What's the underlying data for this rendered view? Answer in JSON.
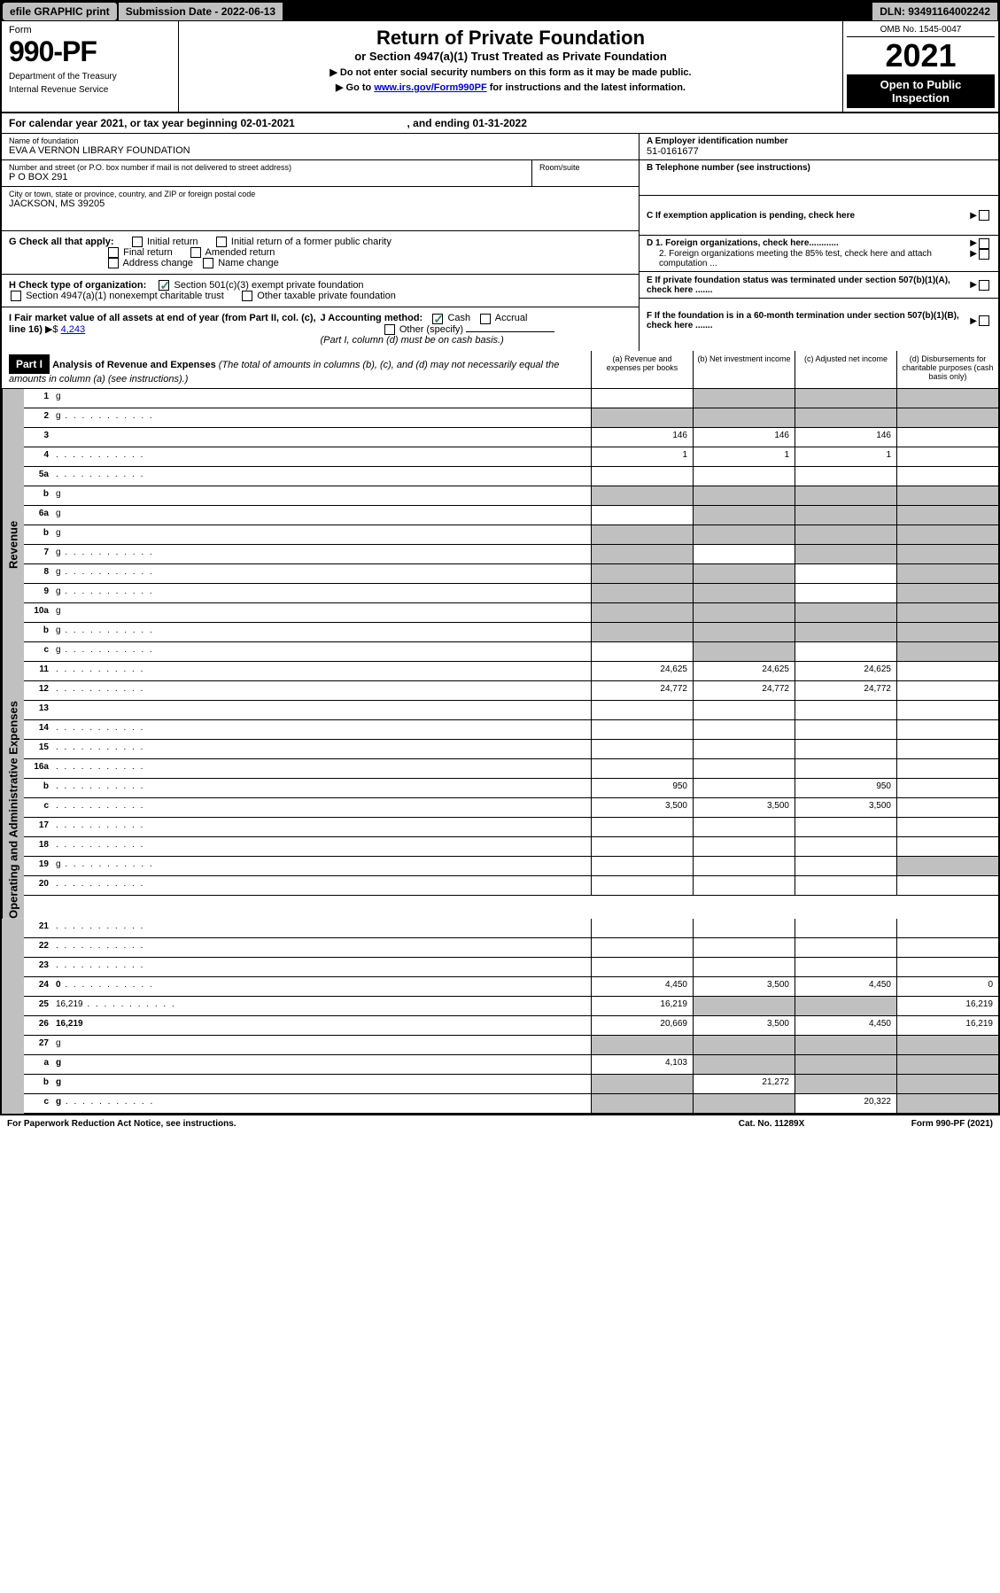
{
  "topbar": {
    "efile": "efile GRAPHIC print",
    "submission": "Submission Date - 2022-06-13",
    "dln": "DLN: 93491164002242"
  },
  "header": {
    "form_label": "Form",
    "form_number": "990-PF",
    "dept1": "Department of the Treasury",
    "dept2": "Internal Revenue Service",
    "title": "Return of Private Foundation",
    "subtitle": "or Section 4947(a)(1) Trust Treated as Private Foundation",
    "note1": "▶ Do not enter social security numbers on this form as it may be made public.",
    "note2_pre": "▶ Go to ",
    "note2_link": "www.irs.gov/Form990PF",
    "note2_post": " for instructions and the latest information.",
    "omb": "OMB No. 1545-0047",
    "year": "2021",
    "open": "Open to Public Inspection"
  },
  "cal": {
    "text": "For calendar year 2021, or tax year beginning 02-01-2021",
    "end": ", and ending 01-31-2022"
  },
  "info": {
    "name_label": "Name of foundation",
    "name_val": "EVA A VERNON LIBRARY FOUNDATION",
    "addr_label": "Number and street (or P.O. box number if mail is not delivered to street address)",
    "addr_val": "P O BOX 291",
    "room_label": "Room/suite",
    "city_label": "City or town, state or province, country, and ZIP or foreign postal code",
    "city_val": "JACKSON, MS  39205",
    "a_label": "A Employer identification number",
    "a_val": "51-0161677",
    "b_label": "B Telephone number (see instructions)",
    "c_label": "C If exemption application is pending, check here",
    "d1": "D 1. Foreign organizations, check here............",
    "d2": "2. Foreign organizations meeting the 85% test, check here and attach computation ...",
    "e": "E  If private foundation status was terminated under section 507(b)(1)(A), check here .......",
    "f": "F  If the foundation is in a 60-month termination under section 507(b)(1)(B), check here .......",
    "g_label": "G Check all that apply:",
    "g_initial": "Initial return",
    "g_initial_former": "Initial return of a former public charity",
    "g_final": "Final return",
    "g_amended": "Amended return",
    "g_address": "Address change",
    "g_name": "Name change",
    "h_label": "H Check type of organization:",
    "h_501c3": "Section 501(c)(3) exempt private foundation",
    "h_4947": "Section 4947(a)(1) nonexempt charitable trust",
    "h_other": "Other taxable private foundation",
    "i_label": "I Fair market value of all assets at end of year (from Part II, col. (c), line 16)",
    "i_val": "4,243",
    "j_label": "J Accounting method:",
    "j_cash": "Cash",
    "j_accrual": "Accrual",
    "j_other": "Other (specify)",
    "j_note": "(Part I, column (d) must be on cash basis.)"
  },
  "part1": {
    "label": "Part I",
    "title": "Analysis of Revenue and Expenses",
    "title_note": "(The total of amounts in columns (b), (c), and (d) may not necessarily equal the amounts in column (a) (see instructions).)",
    "col_a": "(a) Revenue and expenses per books",
    "col_b": "(b) Net investment income",
    "col_c": "(c) Adjusted net income",
    "col_d": "(d) Disbursements for charitable purposes (cash basis only)"
  },
  "side_labels": {
    "revenue": "Revenue",
    "opex": "Operating and Administrative Expenses"
  },
  "rows": [
    {
      "n": "1",
      "d": "g",
      "a": "",
      "b": "g",
      "c": "g"
    },
    {
      "n": "2",
      "d": "g",
      "a": "g",
      "b": "g",
      "c": "g",
      "dots": true
    },
    {
      "n": "3",
      "d": "",
      "a": "146",
      "b": "146",
      "c": "146"
    },
    {
      "n": "4",
      "d": "",
      "a": "1",
      "b": "1",
      "c": "1",
      "dots": true
    },
    {
      "n": "5a",
      "d": "",
      "a": "",
      "b": "",
      "c": "",
      "dots": true
    },
    {
      "n": "b",
      "d": "g",
      "a": "g",
      "b": "g",
      "c": "g"
    },
    {
      "n": "6a",
      "d": "g",
      "a": "",
      "b": "g",
      "c": "g"
    },
    {
      "n": "b",
      "d": "g",
      "a": "g",
      "b": "g",
      "c": "g"
    },
    {
      "n": "7",
      "d": "g",
      "a": "g",
      "b": "",
      "c": "g",
      "dots": true
    },
    {
      "n": "8",
      "d": "g",
      "a": "g",
      "b": "g",
      "c": "",
      "dots": true
    },
    {
      "n": "9",
      "d": "g",
      "a": "g",
      "b": "g",
      "c": "",
      "dots": true
    },
    {
      "n": "10a",
      "d": "g",
      "a": "g",
      "b": "g",
      "c": "g"
    },
    {
      "n": "b",
      "d": "g",
      "a": "g",
      "b": "g",
      "c": "g",
      "dots": true
    },
    {
      "n": "c",
      "d": "g",
      "a": "",
      "b": "g",
      "c": "",
      "dots": true
    },
    {
      "n": "11",
      "d": "",
      "a": "24,625",
      "b": "24,625",
      "c": "24,625",
      "dots": true
    },
    {
      "n": "12",
      "d": "",
      "a": "24,772",
      "b": "24,772",
      "c": "24,772",
      "bold": true,
      "dots": true
    },
    {
      "n": "13",
      "d": "",
      "a": "",
      "b": "",
      "c": ""
    },
    {
      "n": "14",
      "d": "",
      "a": "",
      "b": "",
      "c": "",
      "dots": true
    },
    {
      "n": "15",
      "d": "",
      "a": "",
      "b": "",
      "c": "",
      "dots": true
    },
    {
      "n": "16a",
      "d": "",
      "a": "",
      "b": "",
      "c": "",
      "dots": true
    },
    {
      "n": "b",
      "d": "",
      "a": "950",
      "b": "",
      "c": "950",
      "dots": true
    },
    {
      "n": "c",
      "d": "",
      "a": "3,500",
      "b": "3,500",
      "c": "3,500",
      "dots": true
    },
    {
      "n": "17",
      "d": "",
      "a": "",
      "b": "",
      "c": "",
      "dots": true
    },
    {
      "n": "18",
      "d": "",
      "a": "",
      "b": "",
      "c": "",
      "dots": true
    },
    {
      "n": "19",
      "d": "g",
      "a": "",
      "b": "",
      "c": "",
      "dots": true
    },
    {
      "n": "20",
      "d": "",
      "a": "",
      "b": "",
      "c": "",
      "dots": true
    },
    {
      "n": "21",
      "d": "",
      "a": "",
      "b": "",
      "c": "",
      "dots": true
    },
    {
      "n": "22",
      "d": "",
      "a": "",
      "b": "",
      "c": "",
      "dots": true
    },
    {
      "n": "23",
      "d": "",
      "a": "",
      "b": "",
      "c": "",
      "dots": true
    },
    {
      "n": "24",
      "d": "0",
      "a": "4,450",
      "b": "3,500",
      "c": "4,450",
      "bold": true,
      "dots": true
    },
    {
      "n": "25",
      "d": "16,219",
      "a": "16,219",
      "b": "g",
      "c": "g",
      "dots": true
    },
    {
      "n": "26",
      "d": "16,219",
      "a": "20,669",
      "b": "3,500",
      "c": "4,450",
      "bold": true
    },
    {
      "n": "27",
      "d": "g",
      "a": "g",
      "b": "g",
      "c": "g"
    },
    {
      "n": "a",
      "d": "g",
      "a": "4,103",
      "b": "g",
      "c": "g",
      "bold": true
    },
    {
      "n": "b",
      "d": "g",
      "a": "g",
      "b": "21,272",
      "c": "g",
      "bold": true
    },
    {
      "n": "c",
      "d": "g",
      "a": "g",
      "b": "g",
      "c": "20,322",
      "bold": true,
      "dots": true
    }
  ],
  "footer": {
    "left": "For Paperwork Reduction Act Notice, see instructions.",
    "mid": "Cat. No. 11289X",
    "right": "Form 990-PF (2021)"
  },
  "colors": {
    "grey": "#c0c0c0",
    "link": "#0000cc",
    "check": "#2e8b57"
  }
}
